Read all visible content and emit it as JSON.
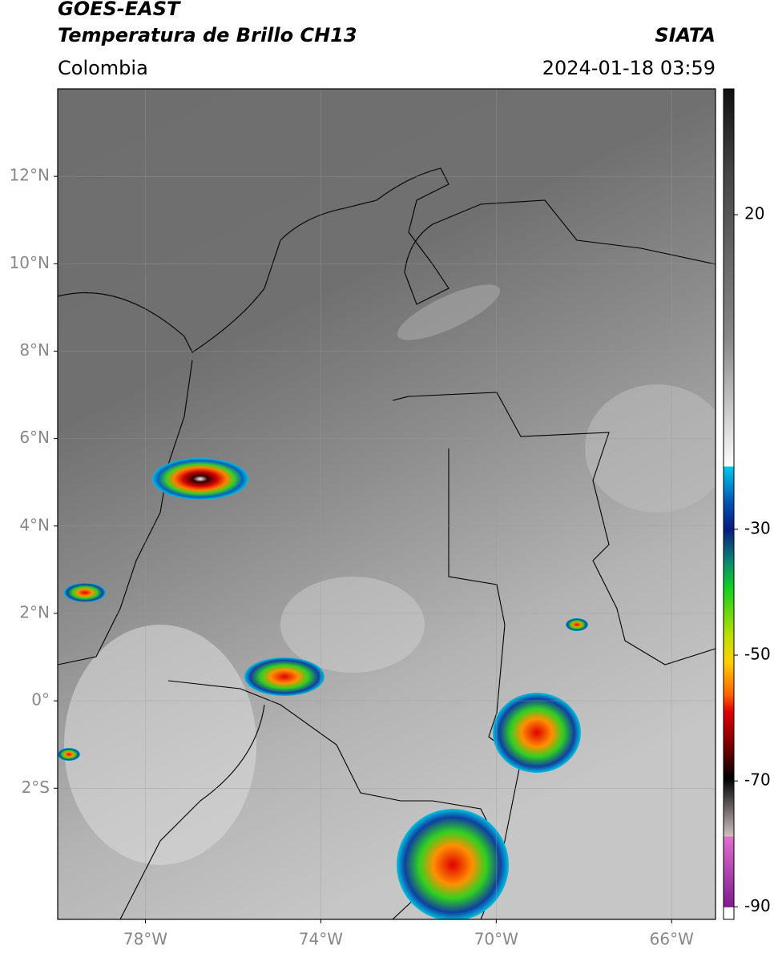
{
  "header": {
    "title": "GOES-EAST",
    "subtitle": "Temperatura de Brillo CH13",
    "region": "Colombia",
    "source": "SIATA",
    "datetime": "2024-01-18 03:59"
  },
  "map": {
    "latlim": [
      -5,
      14
    ],
    "lonlim": [
      -80,
      -65
    ],
    "lat_ticks": [
      {
        "value": 12,
        "label": "12°N"
      },
      {
        "value": 10,
        "label": "10°N"
      },
      {
        "value": 8,
        "label": "8°N"
      },
      {
        "value": 6,
        "label": "6°N"
      },
      {
        "value": 4,
        "label": "4°N"
      },
      {
        "value": 2,
        "label": "2°N"
      },
      {
        "value": 0,
        "label": "0°"
      },
      {
        "value": -2,
        "label": "2°S"
      }
    ],
    "lon_ticks": [
      {
        "value": -78,
        "label": "78°W"
      },
      {
        "value": -74,
        "label": "74°W"
      },
      {
        "value": -70,
        "label": "70°W"
      },
      {
        "value": -66,
        "label": "66°W"
      }
    ]
  },
  "colorbar": {
    "lim": [
      -92,
      40
    ],
    "ticks": [
      20,
      -30,
      -50,
      -70,
      -90
    ]
  }
}
